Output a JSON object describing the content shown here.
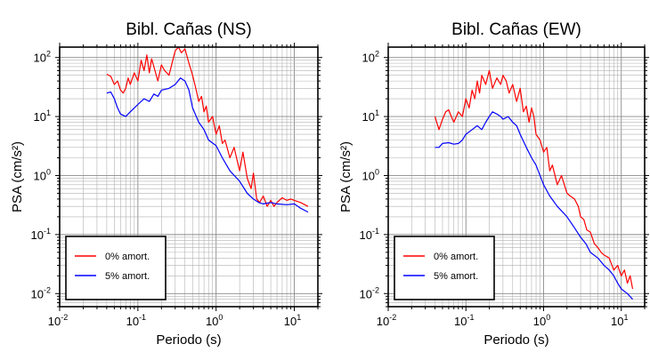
{
  "chart_data": [
    {
      "type": "line",
      "title": "Bibl. Cañas (NS)",
      "xlabel": "Periodo (s)",
      "ylabel": "PSA (cm/s²)",
      "xscale": "log",
      "yscale": "log",
      "xlim": [
        0.01,
        20
      ],
      "ylim": [
        0.006,
        150
      ],
      "grid": true,
      "legend_position": "bottom-left",
      "x_ticks": [
        {
          "base": "10",
          "exp": "-2"
        },
        {
          "base": "10",
          "exp": "-1"
        },
        {
          "base": "10",
          "exp": "0"
        },
        {
          "base": "10",
          "exp": "1"
        }
      ],
      "y_ticks": [
        {
          "base": "10",
          "exp": "-2"
        },
        {
          "base": "10",
          "exp": "-1"
        },
        {
          "base": "10",
          "exp": "0"
        },
        {
          "base": "10",
          "exp": "1"
        },
        {
          "base": "10",
          "exp": "2"
        }
      ],
      "series": [
        {
          "name": "0% amort.",
          "color": "#ff0000",
          "x": [
            0.04,
            0.045,
            0.05,
            0.055,
            0.06,
            0.065,
            0.07,
            0.075,
            0.08,
            0.09,
            0.1,
            0.11,
            0.12,
            0.13,
            0.14,
            0.15,
            0.16,
            0.18,
            0.2,
            0.22,
            0.25,
            0.28,
            0.3,
            0.33,
            0.36,
            0.4,
            0.45,
            0.5,
            0.55,
            0.6,
            0.65,
            0.7,
            0.75,
            0.8,
            0.9,
            1.0,
            1.1,
            1.2,
            1.3,
            1.5,
            1.7,
            2.0,
            2.2,
            2.5,
            2.8,
            3.0,
            3.3,
            3.6,
            4.0,
            4.5,
            5.0,
            5.5,
            6.0,
            7.0,
            8.0,
            9.0,
            10.0,
            12.0,
            15.0
          ],
          "y": [
            52,
            48,
            35,
            40,
            28,
            25,
            30,
            45,
            35,
            55,
            40,
            90,
            60,
            110,
            55,
            95,
            70,
            40,
            75,
            60,
            50,
            90,
            130,
            150,
            120,
            140,
            80,
            50,
            30,
            18,
            22,
            12,
            15,
            8,
            10,
            5,
            7,
            3.5,
            4,
            2,
            3,
            1.2,
            2.5,
            0.9,
            0.6,
            1.1,
            0.4,
            0.35,
            0.45,
            0.3,
            0.38,
            0.3,
            0.35,
            0.42,
            0.38,
            0.4,
            0.38,
            0.35,
            0.3
          ]
        },
        {
          "name": "5% amort.",
          "color": "#0000ff",
          "x": [
            0.04,
            0.045,
            0.05,
            0.055,
            0.06,
            0.07,
            0.08,
            0.09,
            0.1,
            0.12,
            0.14,
            0.16,
            0.18,
            0.2,
            0.25,
            0.3,
            0.35,
            0.4,
            0.45,
            0.5,
            0.6,
            0.7,
            0.8,
            1.0,
            1.2,
            1.5,
            2.0,
            2.5,
            3.0,
            3.5,
            4.0,
            5.0,
            6.0,
            8.0,
            10.0,
            12.0,
            15.0
          ],
          "y": [
            25,
            26,
            20,
            14,
            11,
            10,
            12,
            14,
            16,
            20,
            18,
            24,
            22,
            28,
            30,
            35,
            45,
            40,
            28,
            14,
            8,
            6,
            4,
            3.2,
            2,
            1.2,
            0.8,
            0.5,
            0.4,
            0.35,
            0.33,
            0.35,
            0.33,
            0.32,
            0.33,
            0.28,
            0.24
          ]
        }
      ]
    },
    {
      "type": "line",
      "title": "Bibl. Cañas (EW)",
      "xlabel": "Periodo (s)",
      "ylabel": "PSA (cm/s²)",
      "xscale": "log",
      "yscale": "log",
      "xlim": [
        0.01,
        20
      ],
      "ylim": [
        0.006,
        150
      ],
      "grid": true,
      "legend_position": "bottom-left",
      "x_ticks": [
        {
          "base": "10",
          "exp": "-2"
        },
        {
          "base": "10",
          "exp": "-1"
        },
        {
          "base": "10",
          "exp": "0"
        },
        {
          "base": "10",
          "exp": "1"
        }
      ],
      "y_ticks": [
        {
          "base": "10",
          "exp": "-2"
        },
        {
          "base": "10",
          "exp": "-1"
        },
        {
          "base": "10",
          "exp": "0"
        },
        {
          "base": "10",
          "exp": "1"
        },
        {
          "base": "10",
          "exp": "2"
        }
      ],
      "series": [
        {
          "name": "0% amort.",
          "color": "#ff0000",
          "x": [
            0.04,
            0.045,
            0.05,
            0.055,
            0.06,
            0.065,
            0.07,
            0.08,
            0.09,
            0.1,
            0.11,
            0.12,
            0.13,
            0.14,
            0.15,
            0.16,
            0.18,
            0.2,
            0.22,
            0.25,
            0.28,
            0.3,
            0.33,
            0.36,
            0.4,
            0.45,
            0.5,
            0.55,
            0.6,
            0.65,
            0.7,
            0.75,
            0.8,
            0.9,
            1.0,
            1.1,
            1.2,
            1.3,
            1.5,
            1.7,
            2.0,
            2.2,
            2.5,
            2.8,
            3.0,
            3.3,
            3.6,
            4.0,
            4.5,
            5.0,
            5.5,
            6.0,
            7.0,
            8.0,
            9.0,
            10.0,
            11.0,
            12.0,
            13.0,
            14.0
          ],
          "y": [
            10,
            6,
            9,
            12,
            13,
            10,
            8,
            12,
            10,
            20,
            14,
            28,
            20,
            40,
            25,
            50,
            35,
            60,
            30,
            45,
            35,
            50,
            40,
            25,
            35,
            18,
            30,
            12,
            15,
            8,
            14,
            10,
            5,
            4,
            2.5,
            3,
            1.2,
            1.5,
            0.7,
            1,
            0.5,
            0.45,
            0.4,
            0.3,
            0.2,
            0.18,
            0.12,
            0.11,
            0.07,
            0.06,
            0.05,
            0.045,
            0.04,
            0.025,
            0.03,
            0.02,
            0.025,
            0.015,
            0.02,
            0.012
          ]
        },
        {
          "name": "5% amort.",
          "color": "#0000ff",
          "x": [
            0.04,
            0.045,
            0.05,
            0.06,
            0.07,
            0.08,
            0.09,
            0.1,
            0.12,
            0.14,
            0.16,
            0.18,
            0.2,
            0.22,
            0.25,
            0.28,
            0.3,
            0.35,
            0.4,
            0.45,
            0.5,
            0.6,
            0.7,
            0.8,
            1.0,
            1.2,
            1.5,
            2.0,
            2.5,
            3.0,
            3.5,
            4.0,
            5.0,
            6.0,
            7.0,
            8.0,
            9.0,
            10.0,
            12.0,
            14.0
          ],
          "y": [
            3,
            3,
            3.5,
            3.6,
            3.4,
            3.5,
            4,
            5,
            6,
            7,
            6,
            8,
            10,
            12,
            11,
            10,
            9,
            10,
            8,
            7,
            5,
            3,
            2,
            1.5,
            0.7,
            0.45,
            0.3,
            0.2,
            0.13,
            0.09,
            0.07,
            0.05,
            0.04,
            0.03,
            0.025,
            0.02,
            0.015,
            0.012,
            0.01,
            0.008
          ]
        }
      ]
    }
  ]
}
